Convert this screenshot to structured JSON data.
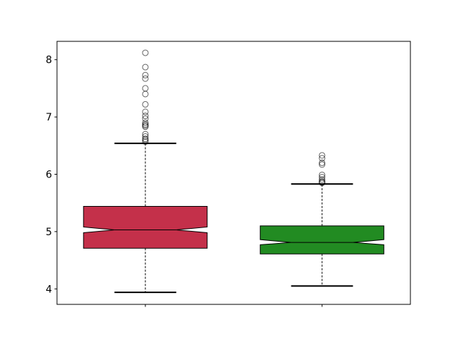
{
  "chart_data": {
    "type": "boxplot",
    "title": "",
    "xlabel": "",
    "ylabel": "",
    "notched": true,
    "grid": false,
    "xlim": [
      0.5,
      2.5
    ],
    "ylim": [
      3.73,
      8.32
    ],
    "yticks": [
      4,
      5,
      6,
      7,
      8
    ],
    "ytick_labels": [
      "4",
      "5",
      "6",
      "7",
      "8"
    ],
    "xticks": [
      1,
      2
    ],
    "boxes": [
      {
        "position": 1,
        "color": "#c4304a",
        "whisker_low": 3.94,
        "q1": 4.71,
        "notch_low": 4.98,
        "median": 5.03,
        "notch_high": 5.08,
        "q3": 5.44,
        "whisker_high": 6.54,
        "outliers": [
          8.12,
          7.87,
          7.73,
          7.67,
          7.5,
          7.4,
          7.22,
          7.09,
          7.02,
          6.97,
          6.9,
          6.87,
          6.85,
          6.83,
          6.7,
          6.66,
          6.62,
          6.6,
          6.57
        ]
      },
      {
        "position": 2,
        "color": "#228b22",
        "whisker_low": 4.05,
        "q1": 4.61,
        "notch_low": 4.77,
        "median": 4.81,
        "notch_high": 4.86,
        "q3": 5.1,
        "whisker_high": 5.83,
        "outliers": [
          6.33,
          6.28,
          6.2,
          6.17,
          5.99,
          5.95,
          5.91,
          5.88,
          5.86,
          5.85
        ]
      }
    ]
  }
}
